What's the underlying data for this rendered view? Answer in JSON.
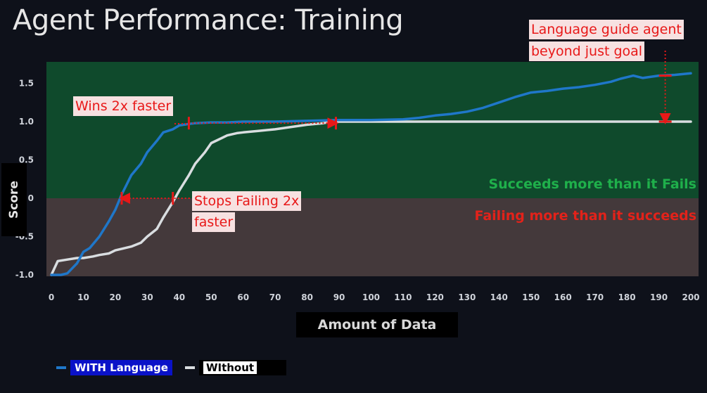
{
  "title": "Agent Performance: Training",
  "chart_data": {
    "type": "line",
    "xlabel": "Amount of Data",
    "ylabel": "Score",
    "xlim": [
      0,
      200
    ],
    "ylim": [
      -1.0,
      1.65
    ],
    "x_ticks": [
      0,
      10,
      20,
      30,
      40,
      50,
      60,
      70,
      80,
      90,
      100,
      110,
      120,
      130,
      140,
      150,
      160,
      170,
      180,
      190,
      200
    ],
    "y_ticks": [
      1.5,
      1.0,
      0.5,
      0,
      -0.5,
      -1.0
    ],
    "y_tick_labels": [
      "1.5",
      "1.0",
      "0.5",
      "0",
      "-0.5",
      "-1.0"
    ],
    "regions": [
      {
        "label": "Succeeds more than it Fails",
        "from": 0,
        "to": 1.8,
        "color": "#0f4a2c",
        "text_color": "#1fb04b"
      },
      {
        "label": "Failing more than it succeeds",
        "from": -1.1,
        "to": 0,
        "color": "#44393b",
        "text_color": "#e3221a"
      }
    ],
    "series": [
      {
        "name": "WITH Language",
        "color": "#1f77c9",
        "x": [
          0,
          3,
          5,
          8,
          10,
          12,
          15,
          18,
          20,
          22,
          25,
          28,
          30,
          33,
          35,
          38,
          40,
          43,
          45,
          50,
          55,
          60,
          70,
          80,
          90,
          100,
          110,
          115,
          120,
          125,
          130,
          135,
          140,
          145,
          150,
          155,
          160,
          165,
          170,
          175,
          178,
          180,
          182,
          185,
          190,
          195,
          200
        ],
        "y": [
          -1.0,
          -1.0,
          -0.98,
          -0.85,
          -0.7,
          -0.65,
          -0.5,
          -0.3,
          -0.15,
          0.05,
          0.3,
          0.45,
          0.6,
          0.75,
          0.86,
          0.9,
          0.95,
          0.97,
          0.98,
          0.99,
          0.99,
          1.0,
          1.0,
          1.01,
          1.02,
          1.02,
          1.03,
          1.05,
          1.08,
          1.1,
          1.13,
          1.18,
          1.25,
          1.32,
          1.38,
          1.4,
          1.43,
          1.45,
          1.48,
          1.52,
          1.56,
          1.58,
          1.6,
          1.57,
          1.6,
          1.61,
          1.63
        ]
      },
      {
        "name": "WIthout",
        "color": "#d9dde0",
        "x": [
          0,
          2,
          5,
          8,
          10,
          13,
          15,
          18,
          20,
          22,
          25,
          28,
          30,
          33,
          35,
          38,
          40,
          43,
          45,
          48,
          50,
          53,
          55,
          58,
          60,
          65,
          70,
          75,
          80,
          85,
          88,
          90,
          95,
          100,
          110,
          120,
          140,
          160,
          180,
          200
        ],
        "y": [
          -1.0,
          -0.82,
          -0.8,
          -0.78,
          -0.78,
          -0.76,
          -0.74,
          -0.72,
          -0.68,
          -0.66,
          -0.63,
          -0.58,
          -0.5,
          -0.4,
          -0.25,
          -0.05,
          0.1,
          0.3,
          0.45,
          0.6,
          0.72,
          0.78,
          0.82,
          0.85,
          0.86,
          0.88,
          0.9,
          0.93,
          0.96,
          0.98,
          1.0,
          1.0,
          1.0,
          1.0,
          1.0,
          1.0,
          1.0,
          1.0,
          1.0,
          1.0
        ]
      }
    ],
    "annotations": [
      {
        "text": "Wins 2x faster",
        "from": [
          43,
          0.98
        ],
        "to": [
          89,
          0.98
        ]
      },
      {
        "text": "Stops Failing 2x\nfaster",
        "from": [
          38,
          0.0
        ],
        "to": [
          22,
          0.0
        ]
      },
      {
        "text": "Language guide agent\nbeyond just goal",
        "from": [
          192,
          1.6
        ],
        "to": [
          192,
          1.0
        ]
      }
    ],
    "legend": "bottom-left"
  },
  "callouts": {
    "wins": "Wins 2x faster",
    "stops_line1": "Stops Failing 2x",
    "stops_line2": "faster",
    "lang_line1": "Language guide agent",
    "lang_line2": "beyond just goal"
  },
  "legend": {
    "with_label": "WITH Language",
    "with_color": "#1f77c9",
    "with_bg": "#0a12c8",
    "without_label": "WIthout",
    "without_color": "#d9dde0",
    "without_bg": "#ffffff"
  }
}
